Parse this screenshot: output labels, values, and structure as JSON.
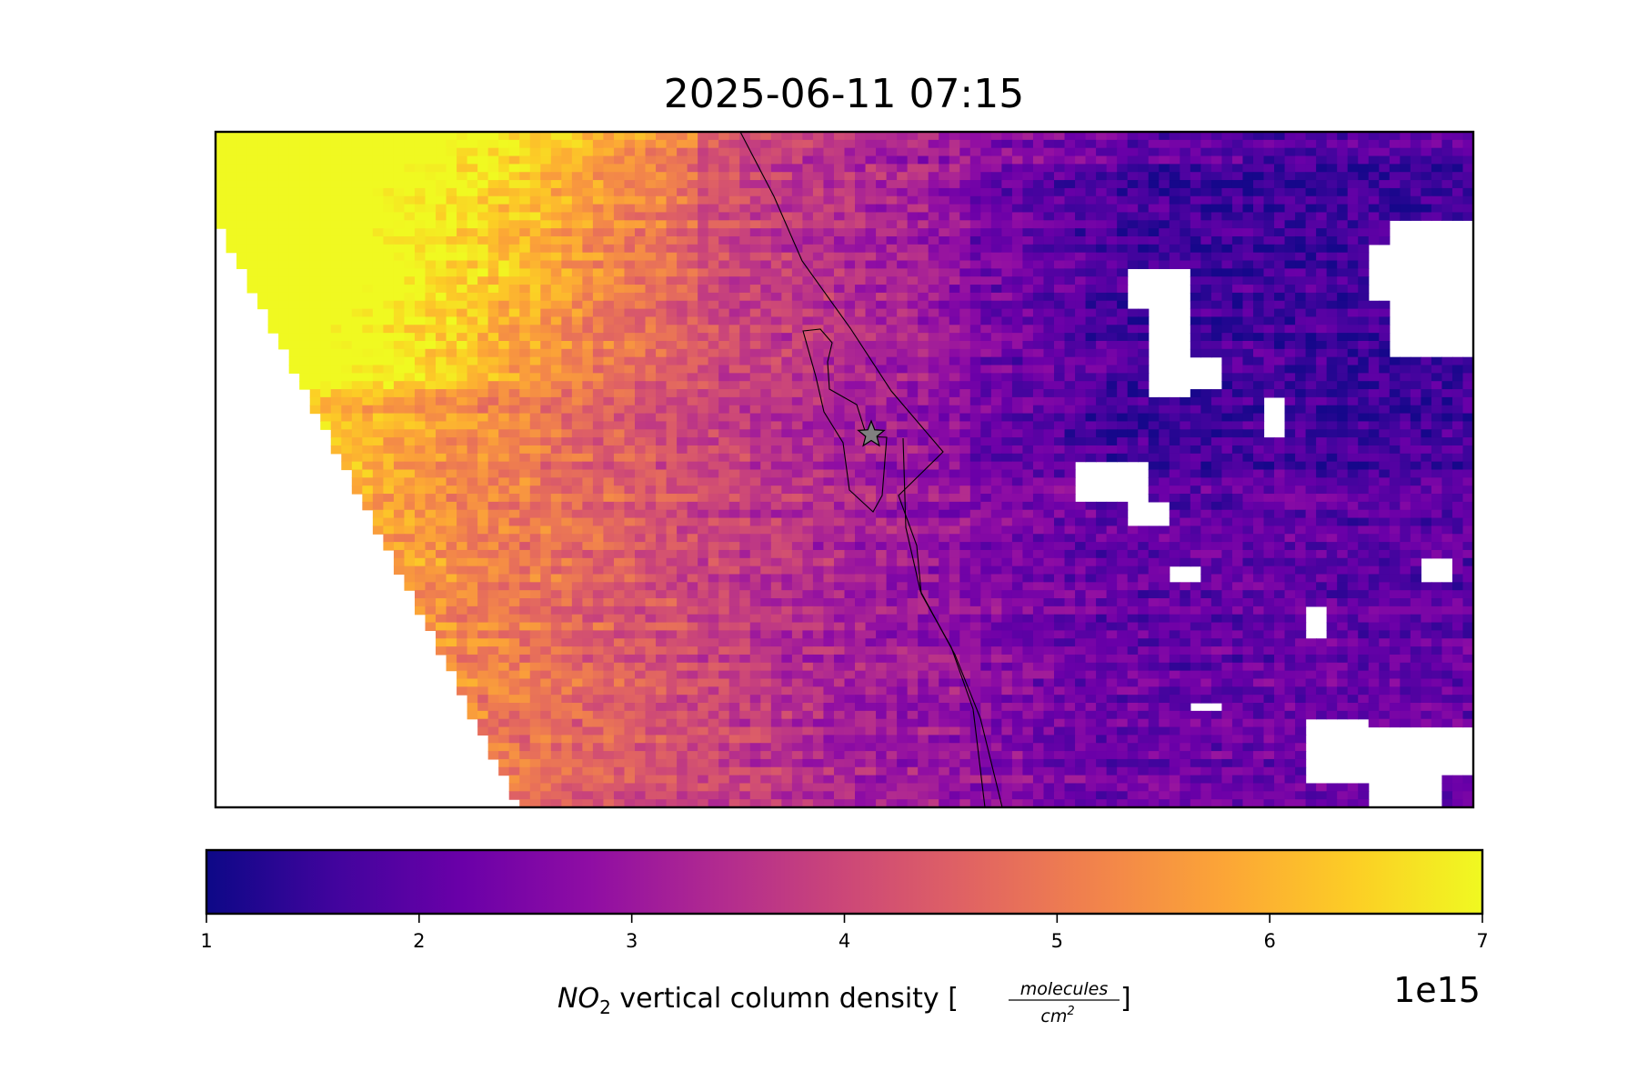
{
  "chart_data": {
    "type": "heatmap",
    "title": "2025-06-11 07:15",
    "variable": "NO2",
    "colormap": "plasma",
    "colorbar": {
      "min": 1,
      "max": 7,
      "ticks": [
        "1",
        "2",
        "3",
        "4",
        "5",
        "6",
        "7"
      ],
      "offset_label": "1e15",
      "label_species": "NO",
      "label_subscript": "2",
      "label_main": " vertical column density [",
      "label_numerator": "molecules",
      "label_denominator": "cm",
      "label_den_superscript": "2",
      "label_end": "]"
    },
    "field_description_values": {
      "west_high": 7,
      "central": 4,
      "east_low": 2,
      "east_min": 1.5
    },
    "marker": {
      "symbol": "star",
      "color": "#808080"
    },
    "grid": false,
    "axes_ticks": false
  }
}
